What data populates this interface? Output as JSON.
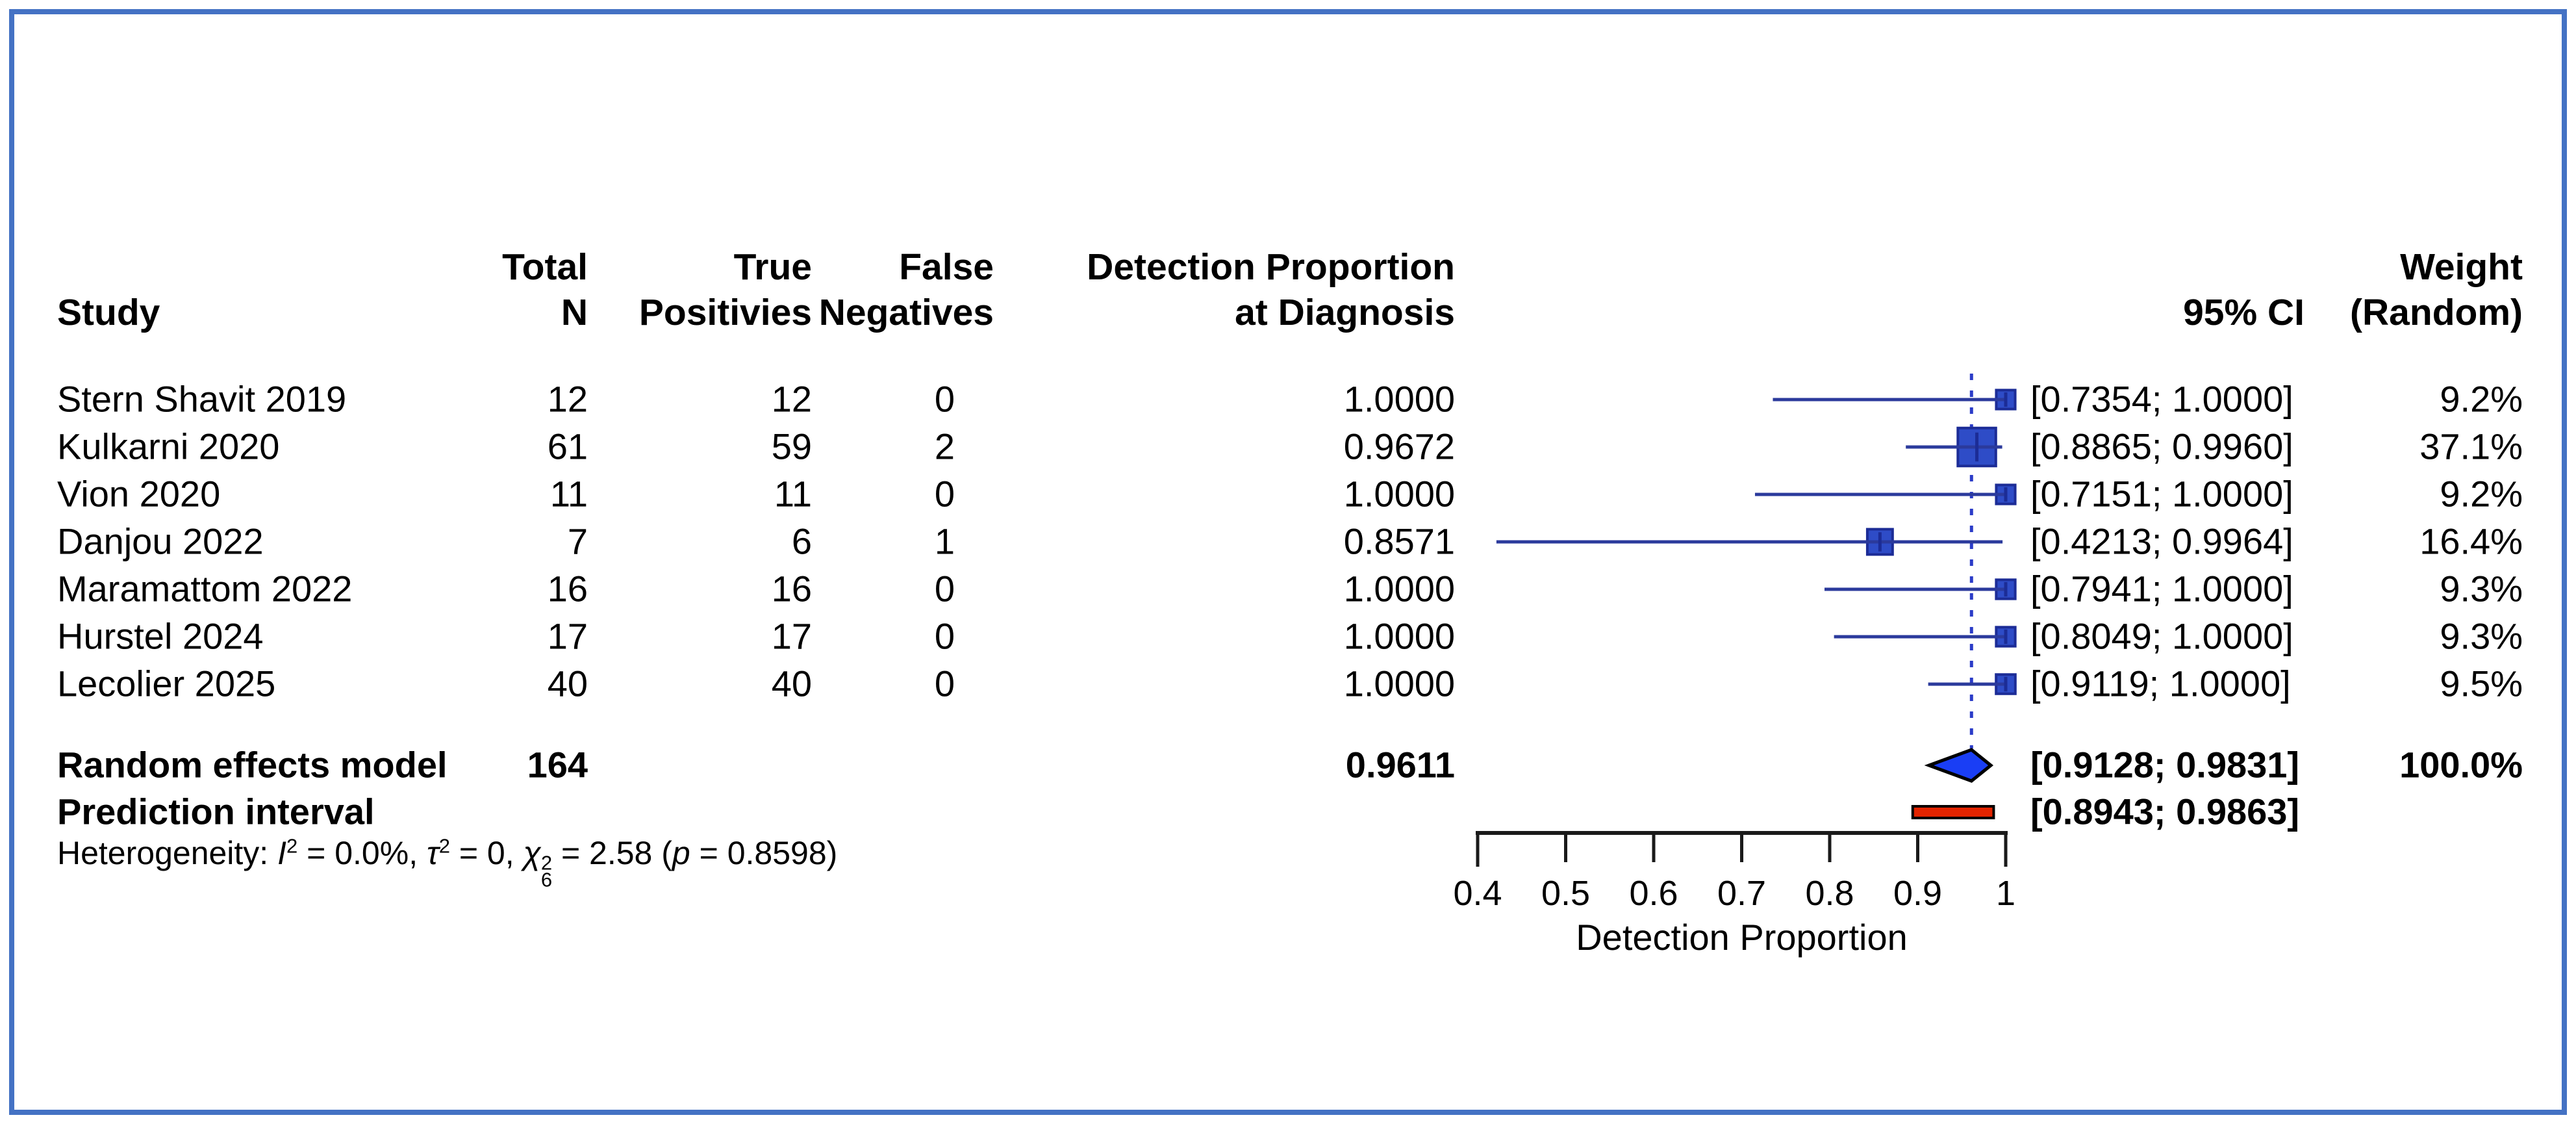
{
  "figure": {
    "border_color": "#4472C4"
  },
  "table": {
    "headers": {
      "study": "Study",
      "total": [
        "Total",
        "N"
      ],
      "true_positives": [
        "True",
        "Positivies"
      ],
      "false_negatives": [
        "False",
        "Negatives"
      ],
      "proportion": [
        "Detection Proportion",
        "at Diagnosis"
      ],
      "ci": "95% CI",
      "weight": [
        "Weight",
        "(Random)"
      ]
    }
  },
  "chart_data": {
    "type": "forest",
    "xlabel": "Detection Proportion",
    "xlim": [
      0.4,
      1.0
    ],
    "x_tick_labels": [
      "0.4",
      "0.5",
      "0.6",
      "0.7",
      "0.8",
      "0.9",
      "1"
    ],
    "x_tick_values": [
      0.4,
      0.5,
      0.6,
      0.7,
      0.8,
      0.9,
      1.0
    ],
    "dashed_reference": 0.9611,
    "studies": [
      {
        "name": "Stern Shavit 2019",
        "total_n": "12",
        "true_pos": "12",
        "false_neg": "0",
        "prop": 1.0,
        "prop_label": "1.0000",
        "lower": 0.7354,
        "upper": 1.0,
        "ci_label": "[0.7354; 1.0000]",
        "weight": 9.2,
        "weight_label": "9.2%"
      },
      {
        "name": "Kulkarni 2020",
        "total_n": "61",
        "true_pos": "59",
        "false_neg": "2",
        "prop": 0.9672,
        "prop_label": "0.9672",
        "lower": 0.8865,
        "upper": 0.996,
        "ci_label": "[0.8865; 0.9960]",
        "weight": 37.1,
        "weight_label": "37.1%"
      },
      {
        "name": "Vion 2020",
        "total_n": "11",
        "true_pos": "11",
        "false_neg": "0",
        "prop": 1.0,
        "prop_label": "1.0000",
        "lower": 0.7151,
        "upper": 1.0,
        "ci_label": "[0.7151; 1.0000]",
        "weight": 9.2,
        "weight_label": "9.2%"
      },
      {
        "name": "Danjou 2022",
        "total_n": "7",
        "true_pos": "6",
        "false_neg": "1",
        "prop": 0.8571,
        "prop_label": "0.8571",
        "lower": 0.4213,
        "upper": 0.9964,
        "ci_label": "[0.4213; 0.9964]",
        "weight": 16.4,
        "weight_label": "16.4%"
      },
      {
        "name": "Maramattom 2022",
        "total_n": "16",
        "true_pos": "16",
        "false_neg": "0",
        "prop": 1.0,
        "prop_label": "1.0000",
        "lower": 0.7941,
        "upper": 1.0,
        "ci_label": "[0.7941; 1.0000]",
        "weight": 9.3,
        "weight_label": "9.3%"
      },
      {
        "name": "Hurstel 2024",
        "total_n": "17",
        "true_pos": "17",
        "false_neg": "0",
        "prop": 1.0,
        "prop_label": "1.0000",
        "lower": 0.8049,
        "upper": 1.0,
        "ci_label": "[0.8049; 1.0000]",
        "weight": 9.3,
        "weight_label": "9.3%"
      },
      {
        "name": "Lecolier 2025",
        "total_n": "40",
        "true_pos": "40",
        "false_neg": "0",
        "prop": 1.0,
        "prop_label": "1.0000",
        "lower": 0.9119,
        "upper": 1.0,
        "ci_label": "[0.9119; 1.0000]",
        "weight": 9.5,
        "weight_label": "9.5%"
      }
    ],
    "pooled": {
      "name": "Random effects model",
      "total_n": "164",
      "prop": 0.9611,
      "prop_label": "0.9611",
      "lower": 0.9128,
      "upper": 0.9831,
      "ci_label": "[0.9128; 0.9831]",
      "weight_label": "100.0%"
    },
    "prediction": {
      "name": "Prediction interval",
      "lower": 0.8943,
      "upper": 0.9863,
      "ci_label": "[0.8943; 0.9863]"
    },
    "heterogeneity": {
      "segments": [
        {
          "t": "Heterogeneity: "
        },
        {
          "t": "I",
          "style": "italic"
        },
        {
          "t": "2",
          "style": "sup"
        },
        {
          "t": " = 0.0%, "
        },
        {
          "t": "τ",
          "style": "italic"
        },
        {
          "t": "2",
          "style": "sup"
        },
        {
          "t": " = 0, "
        },
        {
          "t": "χ",
          "style": "italic"
        },
        {
          "t": "2",
          "t2": "6",
          "style": "stack"
        },
        {
          "t": " = 2.58 ("
        },
        {
          "t": "p",
          "style": "italic"
        },
        {
          "t": " = 0.8598)"
        }
      ]
    }
  },
  "colors": {
    "frame": "#4472C4",
    "square_fill": "#2E4CC7",
    "square_border": "#1C2C96",
    "ci_line": "#2B3A9C",
    "dashed_line": "#2B3CC8",
    "diamond_fill": "#1A3EF5",
    "diamond_border": "#000000",
    "prediction_fill": "#E32400",
    "prediction_border": "#000000",
    "axis": "#1A1A1A",
    "text": "#000000"
  }
}
